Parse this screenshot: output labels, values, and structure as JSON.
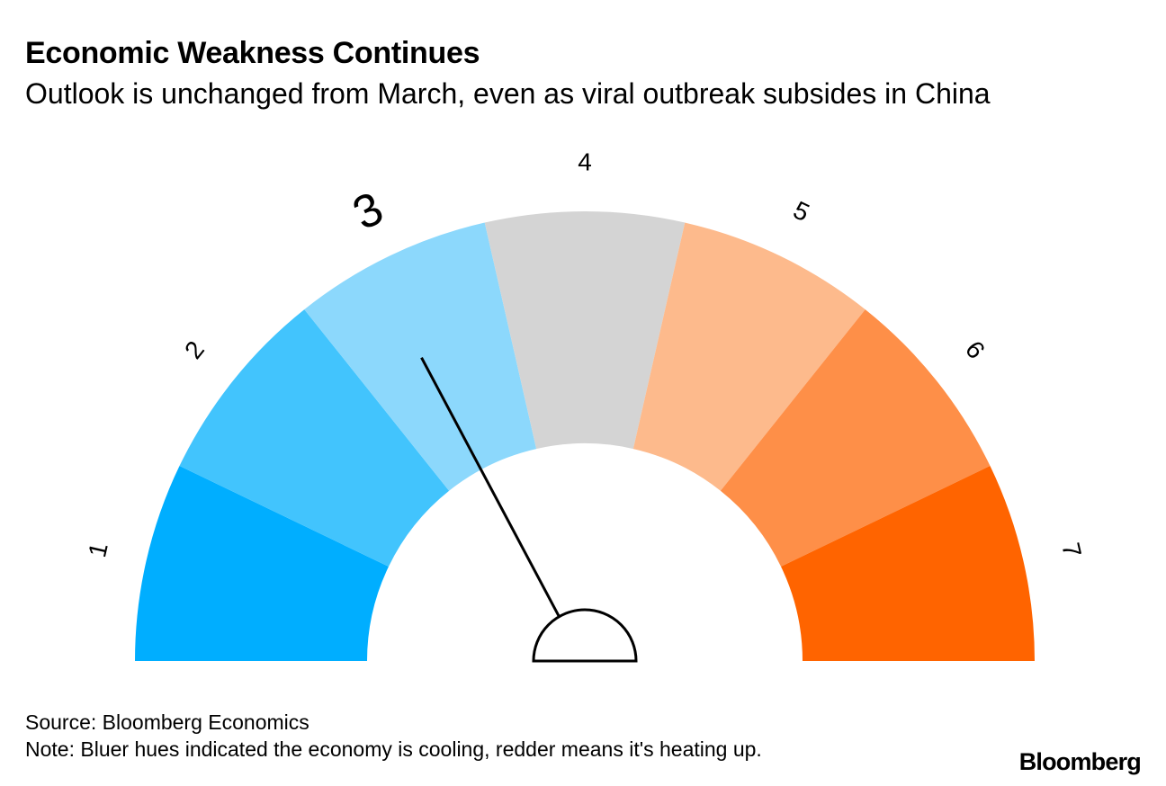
{
  "title": "Economic Weakness Continues",
  "subtitle": "Outlook is unchanged from March, even as viral outbreak subsides in China",
  "source": "Source: Bloomberg Economics",
  "note": "Note: Bluer hues indicated the economy is cooling, redder means it's heating up.",
  "brand": "Bloomberg",
  "chart_data": {
    "type": "gauge",
    "title": "Economic Weakness Continues",
    "scale_min": 1,
    "scale_max": 7,
    "segments": [
      {
        "label": "1",
        "value": 1,
        "color": "#00aeff"
      },
      {
        "label": "2",
        "value": 2,
        "color": "#42c4fd"
      },
      {
        "label": "3",
        "value": 3,
        "color": "#8cd8fc"
      },
      {
        "label": "4",
        "value": 4,
        "color": "#d4d4d4"
      },
      {
        "label": "5",
        "value": 5,
        "color": "#fdba8c"
      },
      {
        "label": "6",
        "value": 6,
        "color": "#fe8f48"
      },
      {
        "label": "7",
        "value": 7,
        "color": "#ff6400"
      }
    ],
    "current_value": 3,
    "needle_position": 2.9
  }
}
